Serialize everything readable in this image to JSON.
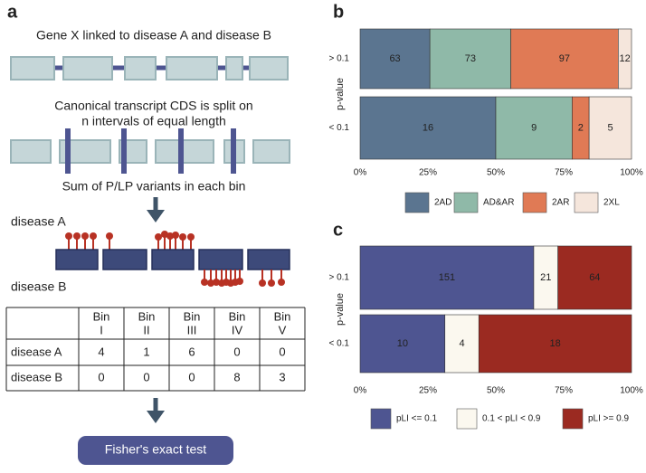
{
  "diagram": {
    "panel_label": "a",
    "step1": "Gene X linked to disease A and disease B",
    "step2_line1": "Canonical transcript CDS is split on",
    "step2_line2": "n intervals of equal length",
    "step3": "Sum of  P/LP variants in each bin",
    "track_a": "disease A",
    "track_b": "disease B",
    "table": {
      "header": [
        [
          "Bin",
          "I"
        ],
        [
          "Bin",
          "II"
        ],
        [
          "Bin",
          "III"
        ],
        [
          "Bin",
          "IV"
        ],
        [
          "Bin",
          "V"
        ]
      ],
      "rows": [
        [
          "disease A",
          4,
          1,
          6,
          0,
          0
        ],
        [
          "disease B",
          0,
          0,
          0,
          8,
          3
        ]
      ]
    },
    "button": "Fisher's exact test"
  },
  "chart_data": [
    {
      "type": "bar",
      "panel_label": "b",
      "orientation": "horizontal",
      "stacked": "percent",
      "ylabel": "p-value",
      "categories": [
        "> 0.1",
        "< 0.1"
      ],
      "series": [
        {
          "name": "2AD",
          "color": "#5b7590",
          "values": [
            63,
            16
          ]
        },
        {
          "name": "AD&AR",
          "color": "#8fb9a8",
          "values": [
            73,
            9
          ]
        },
        {
          "name": "2AR",
          "color": "#e07a55",
          "values": [
            97,
            2
          ]
        },
        {
          "name": "2XL",
          "color": "#f5e6dc",
          "values": [
            12,
            5
          ]
        }
      ],
      "xlim": [
        0,
        100
      ],
      "xticks": [
        {
          "value": 0,
          "label": "0%"
        },
        {
          "value": 25,
          "label": "25%"
        },
        {
          "value": 50,
          "label": "50%"
        },
        {
          "value": 75,
          "label": "75%"
        },
        {
          "value": 100,
          "label": "100%"
        }
      ],
      "legend": "bottom"
    },
    {
      "type": "bar",
      "panel_label": "c",
      "orientation": "horizontal",
      "stacked": "percent",
      "ylabel": "p-value",
      "categories": [
        "> 0.1",
        "< 0.1"
      ],
      "series": [
        {
          "name": "pLI <= 0.1",
          "color": "#4e5591",
          "values": [
            151,
            10
          ]
        },
        {
          "name": "0.1 < pLI < 0.9",
          "color": "#fbf8ef",
          "values": [
            21,
            4
          ]
        },
        {
          "name": "pLI >= 0.9",
          "color": "#9b2a21",
          "values": [
            64,
            18
          ]
        }
      ],
      "xlim": [
        0,
        100
      ],
      "xticks": [
        {
          "value": 0,
          "label": "0%"
        },
        {
          "value": 25,
          "label": "25%"
        },
        {
          "value": 50,
          "label": "50%"
        },
        {
          "value": 75,
          "label": "75%"
        },
        {
          "value": 100,
          "label": "100%"
        }
      ],
      "legend": "bottom"
    }
  ]
}
